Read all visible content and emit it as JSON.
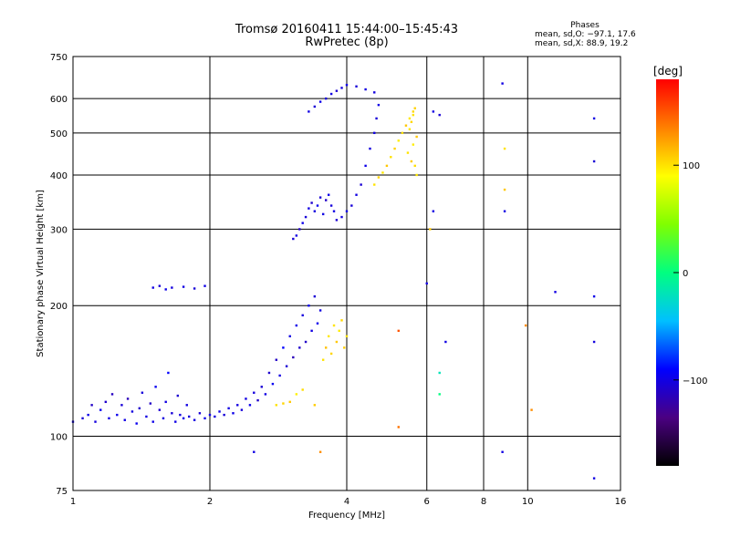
{
  "header": {
    "title_line1": "Tromsø 20160411 15:44:00–15:45:43",
    "title_line2": "RwPretec (8p)",
    "stats_heading": "Phases",
    "stats_o": "mean, sd,O: −97.1, 17.6",
    "stats_x": "mean, sd,X:  88.9, 19.2"
  },
  "colorbar": {
    "unit_label": "[deg]",
    "range": [
      -180,
      180
    ],
    "ticks": [
      "100",
      "0",
      "−100"
    ],
    "tick_values": [
      100,
      0,
      -100
    ],
    "stops": [
      "#000000",
      "#4b0082",
      "#0000ff",
      "#00c0ff",
      "#00ff80",
      "#80ff00",
      "#ffff00",
      "#ff8000",
      "#ff0000"
    ]
  },
  "chart_data": {
    "type": "scatter",
    "title": "Tromsø 20160411 15:44:00–15:45:43",
    "subtitle": "RwPretec (8p)",
    "xlabel": "Frequency [MHz]",
    "ylabel": "Stationary phase Virtual Height [km]",
    "x_scale": "log",
    "y_scale": "log",
    "xlim": [
      1,
      16
    ],
    "ylim": [
      75,
      750
    ],
    "x_ticks": [
      1,
      2,
      4,
      6,
      8,
      10,
      16
    ],
    "x_tick_labels": [
      "1",
      "2",
      "4",
      "6",
      "8",
      "10",
      "16"
    ],
    "y_ticks": [
      75,
      100,
      200,
      300,
      400,
      500,
      600,
      750
    ],
    "y_tick_labels": [
      "75",
      "100",
      "200",
      "300",
      "400",
      "500",
      "600",
      "750"
    ],
    "grid": true,
    "color_axis": "phase [deg]",
    "series": [
      {
        "values_note": "",
        "points": [
          [
            1.0,
            108,
            -100
          ],
          [
            1.05,
            110,
            -105
          ],
          [
            1.08,
            112,
            -98
          ],
          [
            1.1,
            118,
            -110
          ],
          [
            1.12,
            108,
            -102
          ],
          [
            1.15,
            115,
            -95
          ],
          [
            1.18,
            120,
            -108
          ],
          [
            1.2,
            110,
            -100
          ],
          [
            1.22,
            125,
            -112
          ],
          [
            1.25,
            112,
            -97
          ],
          [
            1.28,
            118,
            -104
          ],
          [
            1.3,
            109,
            -99
          ],
          [
            1.32,
            122,
            -115
          ],
          [
            1.35,
            114,
            -101
          ],
          [
            1.38,
            107,
            -96
          ],
          [
            1.4,
            116,
            -108
          ],
          [
            1.42,
            126,
            -103
          ],
          [
            1.45,
            111,
            -100
          ],
          [
            1.48,
            119,
            -110
          ],
          [
            1.5,
            108,
            -98
          ],
          [
            1.52,
            130,
            -95
          ],
          [
            1.55,
            115,
            -106
          ],
          [
            1.58,
            110,
            -101
          ],
          [
            1.6,
            120,
            -100
          ],
          [
            1.62,
            140,
            -90
          ],
          [
            1.65,
            113,
            -104
          ],
          [
            1.68,
            108,
            -99
          ],
          [
            1.7,
            124,
            -107
          ],
          [
            1.72,
            112,
            -102
          ],
          [
            1.75,
            110,
            -98
          ],
          [
            1.78,
            118,
            -100
          ],
          [
            1.8,
            111,
            -103
          ],
          [
            1.85,
            109,
            -101
          ],
          [
            1.9,
            113,
            -105
          ],
          [
            1.95,
            110,
            -97
          ],
          [
            2.0,
            112,
            -100
          ],
          [
            2.05,
            111,
            -102
          ],
          [
            2.1,
            114,
            -99
          ],
          [
            2.15,
            112,
            -104
          ],
          [
            2.2,
            116,
            -100
          ],
          [
            2.25,
            113,
            -98
          ],
          [
            2.3,
            118,
            -101
          ],
          [
            2.35,
            115,
            -103
          ],
          [
            2.4,
            122,
            -100
          ],
          [
            2.45,
            118,
            -97
          ],
          [
            2.5,
            126,
            -102
          ],
          [
            2.55,
            121,
            -110
          ],
          [
            2.6,
            130,
            -105
          ],
          [
            2.65,
            125,
            -100
          ],
          [
            2.7,
            140,
            -108
          ],
          [
            2.75,
            132,
            -95
          ],
          [
            2.8,
            150,
            -110
          ],
          [
            2.85,
            138,
            -100
          ],
          [
            2.9,
            160,
            -90
          ],
          [
            2.95,
            145,
            -105
          ],
          [
            3.0,
            170,
            -100
          ],
          [
            3.05,
            152,
            -115
          ],
          [
            3.1,
            180,
            -98
          ],
          [
            3.15,
            160,
            -108
          ],
          [
            3.2,
            190,
            -102
          ],
          [
            3.25,
            165,
            -110
          ],
          [
            3.3,
            200,
            -95
          ],
          [
            3.35,
            175,
            -100
          ],
          [
            3.4,
            210,
            -105
          ],
          [
            3.45,
            182,
            -97
          ],
          [
            3.5,
            195,
            -101
          ],
          [
            2.8,
            118,
            100
          ],
          [
            2.9,
            119,
            105
          ],
          [
            3.0,
            120,
            110
          ],
          [
            3.1,
            125,
            95
          ],
          [
            3.2,
            128,
            102
          ],
          [
            3.4,
            118,
            108
          ],
          [
            3.55,
            150,
            100
          ],
          [
            3.6,
            160,
            112
          ],
          [
            3.65,
            170,
            98
          ],
          [
            3.7,
            155,
            105
          ],
          [
            3.75,
            180,
            100
          ],
          [
            3.8,
            165,
            110
          ],
          [
            3.85,
            175,
            96
          ],
          [
            3.9,
            185,
            104
          ],
          [
            3.95,
            160,
            108
          ],
          [
            4.0,
            170,
            100
          ],
          [
            1.5,
            220,
            -100
          ],
          [
            1.55,
            222,
            -105
          ],
          [
            1.6,
            218,
            -98
          ],
          [
            1.65,
            220,
            -102
          ],
          [
            1.75,
            221,
            -100
          ],
          [
            1.85,
            219,
            -104
          ],
          [
            1.95,
            222,
            -99
          ],
          [
            3.05,
            285,
            -105
          ],
          [
            3.1,
            290,
            -100
          ],
          [
            3.15,
            300,
            -110
          ],
          [
            3.2,
            310,
            -98
          ],
          [
            3.25,
            320,
            -104
          ],
          [
            3.3,
            335,
            -100
          ],
          [
            3.35,
            345,
            -108
          ],
          [
            3.4,
            330,
            -102
          ],
          [
            3.45,
            340,
            -96
          ],
          [
            3.5,
            355,
            -105
          ],
          [
            3.55,
            325,
            -100
          ],
          [
            3.6,
            350,
            -110
          ],
          [
            3.65,
            360,
            -98
          ],
          [
            3.7,
            340,
            -103
          ],
          [
            3.75,
            330,
            -100
          ],
          [
            3.8,
            315,
            -106
          ],
          [
            3.9,
            320,
            -101
          ],
          [
            4.0,
            330,
            -99
          ],
          [
            4.1,
            340,
            -104
          ],
          [
            4.2,
            360,
            -100
          ],
          [
            4.3,
            380,
            -105
          ],
          [
            4.4,
            420,
            -98
          ],
          [
            4.5,
            460,
            -102
          ],
          [
            4.6,
            500,
            -100
          ],
          [
            4.65,
            540,
            -104
          ],
          [
            4.7,
            580,
            -99
          ],
          [
            3.3,
            560,
            -100
          ],
          [
            3.4,
            575,
            -105
          ],
          [
            3.5,
            590,
            -98
          ],
          [
            3.6,
            600,
            -103
          ],
          [
            3.7,
            615,
            -100
          ],
          [
            3.8,
            625,
            -106
          ],
          [
            3.9,
            635,
            -101
          ],
          [
            4.0,
            645,
            -99
          ],
          [
            4.2,
            640,
            -104
          ],
          [
            4.4,
            630,
            -100
          ],
          [
            4.6,
            620,
            -102
          ],
          [
            4.6,
            380,
            100
          ],
          [
            4.7,
            395,
            105
          ],
          [
            4.8,
            405,
            98
          ],
          [
            4.9,
            420,
            110
          ],
          [
            5.0,
            440,
            100
          ],
          [
            5.1,
            460,
            106
          ],
          [
            5.2,
            480,
            96
          ],
          [
            5.3,
            500,
            102
          ],
          [
            5.4,
            520,
            110
          ],
          [
            5.5,
            540,
            98
          ],
          [
            5.6,
            560,
            104
          ],
          [
            5.45,
            450,
            100
          ],
          [
            5.55,
            430,
            108
          ],
          [
            5.6,
            470,
            96
          ],
          [
            5.65,
            420,
            102
          ],
          [
            5.7,
            490,
            110
          ],
          [
            5.5,
            510,
            98
          ],
          [
            5.55,
            530,
            104
          ],
          [
            5.6,
            550,
            100
          ],
          [
            5.65,
            570,
            106
          ],
          [
            5.7,
            400,
            98
          ],
          [
            6.2,
            560,
            -100
          ],
          [
            6.4,
            550,
            -105
          ],
          [
            8.8,
            650,
            -100
          ],
          [
            8.9,
            460,
            100
          ],
          [
            8.9,
            370,
            110
          ],
          [
            8.9,
            330,
            -100
          ],
          [
            14.0,
            540,
            -100
          ],
          [
            14.0,
            430,
            -105
          ],
          [
            14.0,
            210,
            -98
          ],
          [
            14.0,
            165,
            -102
          ],
          [
            14.0,
            80,
            -100
          ],
          [
            11.5,
            215,
            -100
          ],
          [
            8.8,
            92,
            -100
          ],
          [
            3.5,
            92,
            130
          ],
          [
            6.1,
            300,
            110
          ],
          [
            6.6,
            165,
            -100
          ],
          [
            6.4,
            125,
            0
          ],
          [
            6.4,
            140,
            -20
          ],
          [
            9.9,
            180,
            130
          ],
          [
            5.2,
            105,
            140
          ],
          [
            5.2,
            175,
            150
          ],
          [
            10.2,
            115,
            130
          ],
          [
            6.2,
            330,
            -100
          ],
          [
            6.0,
            225,
            -100
          ],
          [
            2.5,
            92,
            -100
          ]
        ]
      }
    ]
  }
}
